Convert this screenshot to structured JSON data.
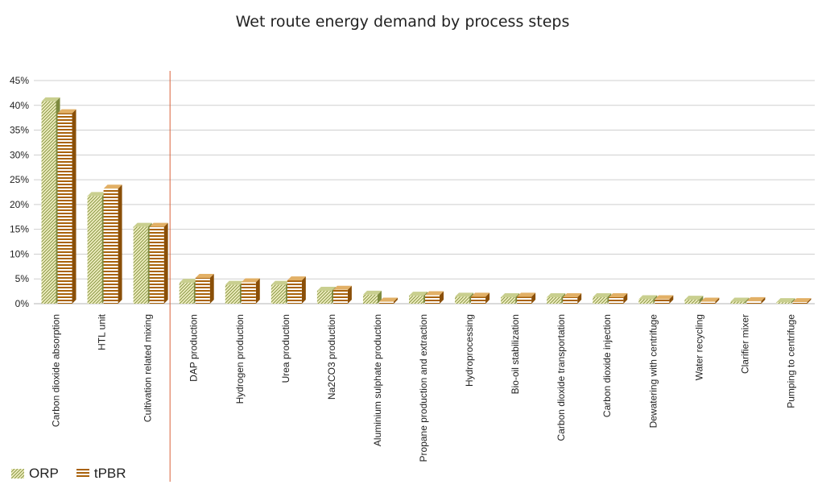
{
  "chart_data": {
    "type": "bar",
    "title": "Wet route energy demand by process steps",
    "xlabel": "",
    "ylabel": "",
    "ylim": [
      0,
      45
    ],
    "y_ticks": [
      "0%",
      "5%",
      "10%",
      "15%",
      "20%",
      "25%",
      "30%",
      "35%",
      "40%",
      "45%"
    ],
    "grid": true,
    "legend_position": "bottom-left",
    "categories": [
      "Carbon dioxide absorption",
      "HTL unit",
      "Cultivation related mixing",
      "DAP production",
      "Hydrogen production",
      "Urea production",
      "Na2CO3 production",
      "Aluminium sulphate production",
      "Propane production and extraction",
      "Hydroprocessing",
      "Bio-oil stabilization",
      "Carbon dioxide transportation",
      "Carbon dioxide injection",
      "Dewatering with centrifuge",
      "Water recycling",
      "Clarifier mixer",
      "Pumping to centrifuge"
    ],
    "series": [
      {
        "name": "ORP",
        "values": [
          40.8,
          21.7,
          15.5,
          4.2,
          3.8,
          3.8,
          2.6,
          1.8,
          1.6,
          1.4,
          1.3,
          1.3,
          1.3,
          0.9,
          0.8,
          0.4,
          0.3
        ]
      },
      {
        "name": "tPBR",
        "values": [
          38.4,
          23.2,
          15.5,
          5.2,
          4.3,
          4.7,
          2.8,
          0.4,
          1.7,
          1.4,
          1.4,
          1.3,
          1.3,
          0.9,
          0.4,
          0.5,
          0.3
        ]
      }
    ],
    "divider_after_category": 3,
    "colors": {
      "orp_fill": "#f2f0c4",
      "orp_stripe": "#8c9a48",
      "tpbr_fill": "#ffffff",
      "tpbr_stripe": "#a9620b",
      "grid": "#cfcfcf",
      "divider": "#d9603a"
    }
  }
}
